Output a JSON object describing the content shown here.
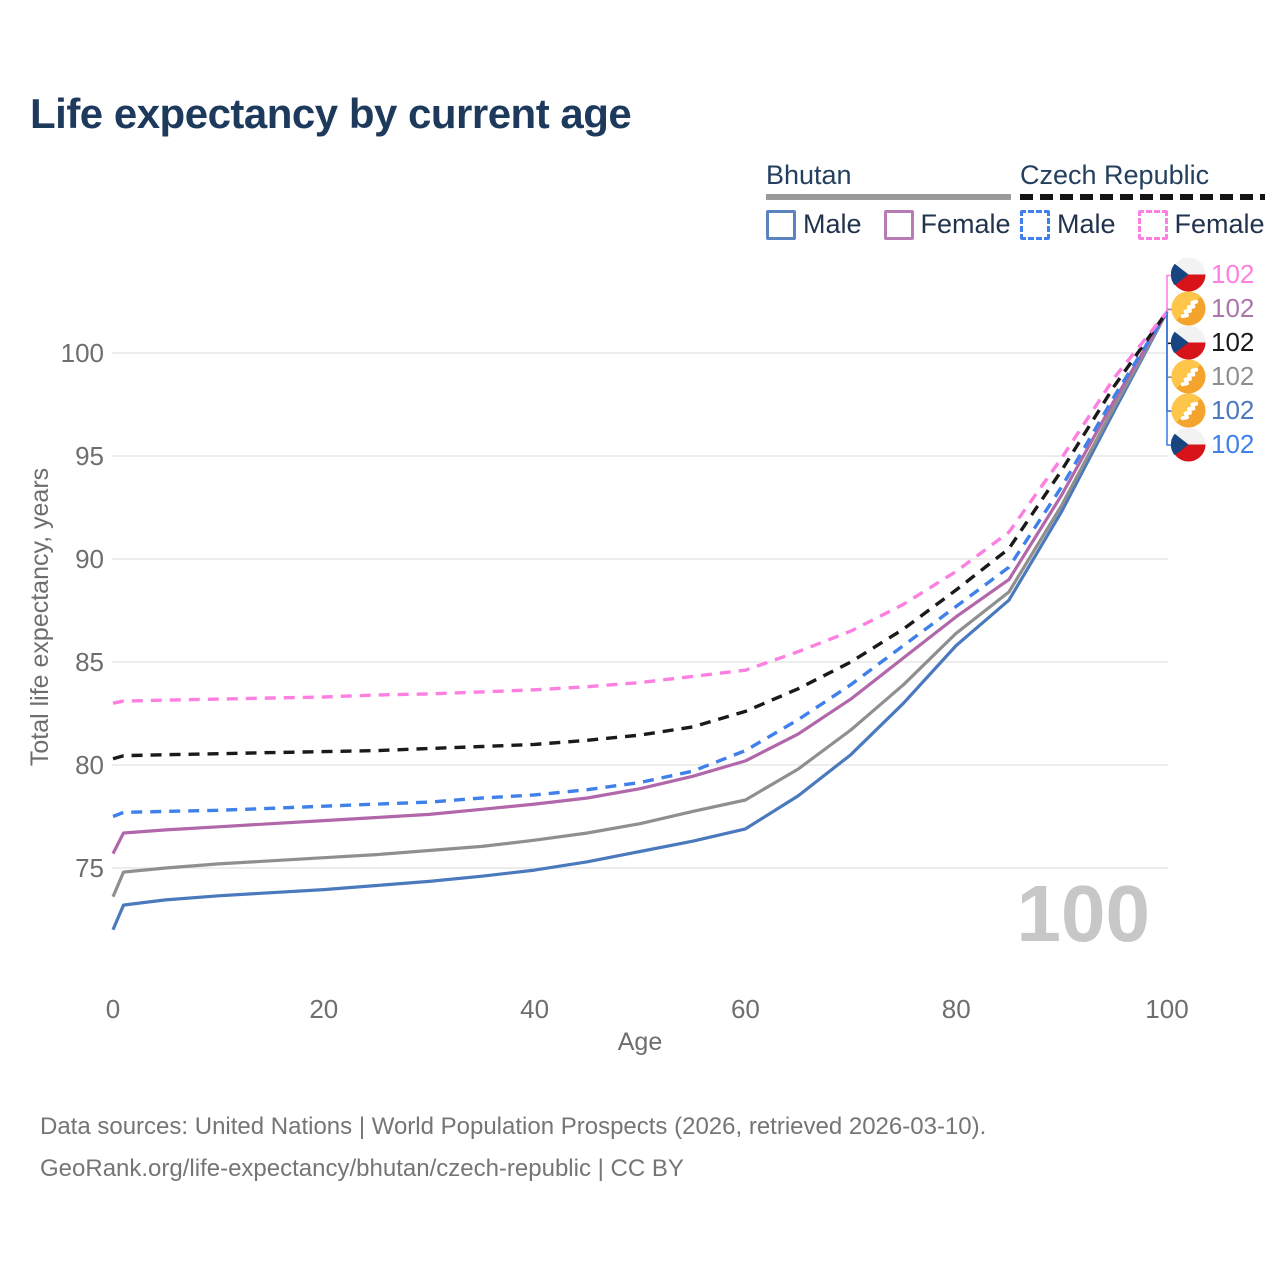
{
  "title": "Life expectancy by current age",
  "legend": {
    "groups": [
      {
        "country": "Bhutan",
        "style": "solid",
        "items": [
          {
            "label": "Male",
            "color": "#5b83c0"
          },
          {
            "label": "Female",
            "color": "#b87cb4"
          }
        ]
      },
      {
        "country": "Czech Republic",
        "style": "dashed",
        "items": [
          {
            "label": "Male",
            "color": "#3f80ea"
          },
          {
            "label": "Female",
            "color": "#fd80e1"
          }
        ]
      }
    ]
  },
  "watermark_age": "100",
  "end_labels": [
    {
      "value": "102",
      "flag": "czech-republic-flag",
      "color": "#fd80e1"
    },
    {
      "value": "102",
      "flag": "bhutan-flag",
      "color": "#ab77ab"
    },
    {
      "value": "102",
      "flag": "czech-republic-flag",
      "color": "#1a1a1a"
    },
    {
      "value": "102",
      "flag": "bhutan-flag",
      "color": "#8f8f8f"
    },
    {
      "value": "102",
      "flag": "bhutan-flag",
      "color": "#4a79bd"
    },
    {
      "value": "102",
      "flag": "czech-republic-flag",
      "color": "#3f80ea"
    }
  ],
  "chart_data": {
    "type": "line",
    "title": "Life expectancy by current age",
    "xlabel": "Age",
    "ylabel": "Total life expectancy, years",
    "x_ticks": [
      0,
      20,
      40,
      60,
      80,
      100
    ],
    "y_ticks": [
      75,
      80,
      85,
      90,
      95,
      100
    ],
    "xlim": [
      0,
      100
    ],
    "ylim": [
      71.5,
      102.5
    ],
    "grid": "horizontal",
    "legend_position": "top-right",
    "ages": [
      0,
      1,
      5,
      10,
      15,
      20,
      25,
      30,
      35,
      40,
      45,
      50,
      55,
      60,
      65,
      70,
      75,
      80,
      85,
      90,
      95,
      100
    ],
    "series": [
      {
        "name": "Bhutan Male",
        "country": "Bhutan",
        "group": "Male",
        "style": "solid",
        "color": "#4a79bd",
        "values": [
          72.0,
          73.2,
          73.45,
          73.65,
          73.8,
          73.95,
          74.15,
          74.35,
          74.6,
          74.9,
          75.3,
          75.8,
          76.3,
          76.9,
          78.5,
          80.5,
          83.0,
          85.8,
          88.0,
          92.3,
          97.2,
          102
        ]
      },
      {
        "name": "Bhutan (all)",
        "country": "Bhutan",
        "group": "All",
        "style": "solid",
        "color": "#8f8f8f",
        "values": [
          73.6,
          74.8,
          75.0,
          75.2,
          75.35,
          75.5,
          75.65,
          75.85,
          76.05,
          76.35,
          76.7,
          77.15,
          77.75,
          78.3,
          79.8,
          81.7,
          83.9,
          86.4,
          88.4,
          92.6,
          97.4,
          102
        ]
      },
      {
        "name": "Bhutan Female",
        "country": "Bhutan",
        "group": "Female",
        "style": "solid",
        "color": "#b167a9",
        "values": [
          75.7,
          76.7,
          76.85,
          77.0,
          77.15,
          77.3,
          77.45,
          77.6,
          77.85,
          78.1,
          78.4,
          78.85,
          79.45,
          80.2,
          81.5,
          83.2,
          85.2,
          87.2,
          89.0,
          93.1,
          97.7,
          102
        ]
      },
      {
        "name": "Czech Republic Male",
        "country": "Czech Republic",
        "group": "Male",
        "style": "dashed",
        "color": "#3f80ea",
        "values": [
          77.5,
          77.7,
          77.75,
          77.8,
          77.9,
          78.0,
          78.1,
          78.2,
          78.4,
          78.55,
          78.8,
          79.15,
          79.7,
          80.7,
          82.2,
          83.9,
          85.8,
          87.7,
          89.6,
          93.5,
          97.9,
          102
        ]
      },
      {
        "name": "Czech Republic (all)",
        "country": "Czech Republic",
        "group": "All",
        "style": "dashed",
        "color": "#1a1a1a",
        "values": [
          80.3,
          80.45,
          80.5,
          80.55,
          80.6,
          80.65,
          80.7,
          80.8,
          80.9,
          81.0,
          81.2,
          81.45,
          81.85,
          82.6,
          83.7,
          85.0,
          86.6,
          88.5,
          90.5,
          94.3,
          98.4,
          102
        ]
      },
      {
        "name": "Czech Republic Female",
        "country": "Czech Republic",
        "group": "Female",
        "style": "dashed",
        "color": "#fd80e1",
        "values": [
          83.0,
          83.1,
          83.15,
          83.2,
          83.25,
          83.3,
          83.4,
          83.45,
          83.55,
          83.65,
          83.8,
          84.0,
          84.3,
          84.6,
          85.5,
          86.5,
          87.8,
          89.4,
          91.3,
          94.9,
          98.8,
          102
        ]
      }
    ]
  },
  "footer": {
    "line1": "Data sources: United Nations | World Population Prospects (2026, retrieved 2026-03-10).",
    "line2": "GeoRank.org/life-expectancy/bhutan/czech-republic | CC BY"
  }
}
